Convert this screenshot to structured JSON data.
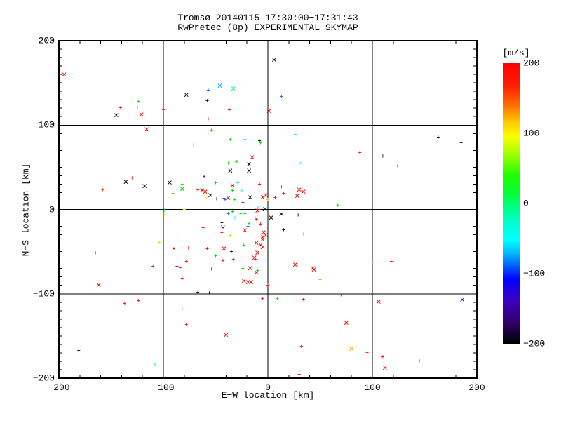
{
  "chart_data": {
    "type": "scatter",
    "title": "Tromsø 20140115 17:30:00−17:31:43",
    "subtitle": "RwPretec (8p) EXPERIMENTAL SKYMAP",
    "xlabel": "E−W location [km]",
    "ylabel": "N−S location [km]",
    "xlim": [
      -200,
      200
    ],
    "ylim": [
      -200,
      200
    ],
    "x_ticks": {
      "major": [
        -200,
        -100,
        0,
        100,
        200
      ],
      "labels": [
        "−200",
        "−100",
        "0",
        "100",
        "200"
      ],
      "minor_step": 20
    },
    "y_ticks": {
      "major": [
        -200,
        -100,
        0,
        100,
        200
      ],
      "labels": [
        "−200",
        "−100",
        "0",
        "100",
        "200"
      ],
      "minor_step": 10
    },
    "grid": true,
    "grid_lines_at": [
      -100,
      0,
      100
    ],
    "colorbar": {
      "title": "[m/s]",
      "range": [
        -200,
        200
      ],
      "tick_values": [
        200,
        100,
        0,
        -100,
        -200
      ],
      "tick_labels": [
        "200",
        "100",
        "0",
        "−100",
        "−200"
      ],
      "legend_position": "right",
      "gradient": [
        {
          "p": 0.0,
          "c": "#ff0000"
        },
        {
          "p": 0.08,
          "c": "#ff1e00"
        },
        {
          "p": 0.15,
          "c": "#ff6e00"
        },
        {
          "p": 0.21,
          "c": "#ffc800"
        },
        {
          "p": 0.26,
          "c": "#ffff00"
        },
        {
          "p": 0.33,
          "c": "#96ff00"
        },
        {
          "p": 0.4,
          "c": "#1eff00"
        },
        {
          "p": 0.47,
          "c": "#00ff3c"
        },
        {
          "p": 0.52,
          "c": "#00ff8c"
        },
        {
          "p": 0.58,
          "c": "#00ffdc"
        },
        {
          "p": 0.63,
          "c": "#00ffff"
        },
        {
          "p": 0.68,
          "c": "#00b4ff"
        },
        {
          "p": 0.73,
          "c": "#0050ff"
        },
        {
          "p": 0.77,
          "c": "#0000ff"
        },
        {
          "p": 0.84,
          "c": "#3c00c8"
        },
        {
          "p": 0.92,
          "c": "#30006e"
        },
        {
          "p": 1.0,
          "c": "#000000"
        }
      ]
    },
    "points": [
      [
        -195,
        159,
        "#ff0000",
        "l"
      ],
      [
        -78,
        135,
        "#000000",
        "l"
      ],
      [
        -124,
        127,
        "#00dc00",
        "s"
      ],
      [
        -125,
        120,
        "#000000",
        "s"
      ],
      [
        -141,
        119,
        "#ff0000",
        "s"
      ],
      [
        -145,
        111,
        "#000000",
        "l"
      ],
      [
        -121,
        112,
        "#ff0000",
        "l"
      ],
      [
        -100,
        117,
        "#ff0000",
        "s"
      ],
      [
        -116,
        94,
        "#ff0000",
        "l"
      ],
      [
        -71,
        75,
        "#00dc00",
        "s"
      ],
      [
        6,
        177,
        "#000000",
        "l"
      ],
      [
        -46,
        146,
        "#00a0ff",
        "l"
      ],
      [
        -33,
        143,
        "#00ff7f",
        "l"
      ],
      [
        -57,
        140,
        "#0064ff",
        "s"
      ],
      [
        -58,
        128,
        "#000000",
        "s"
      ],
      [
        -37,
        117,
        "#ff0000",
        "s"
      ],
      [
        13,
        133,
        "#0064ff",
        "s"
      ],
      [
        1,
        116,
        "#ff0000",
        "l"
      ],
      [
        -57,
        106,
        "#ff0000",
        "s"
      ],
      [
        -54,
        93,
        "#00dc00",
        "s"
      ],
      [
        -36,
        82,
        "#00dc00",
        "s"
      ],
      [
        -22,
        82,
        "#00ffff",
        "s"
      ],
      [
        -8,
        80,
        "#000000",
        "s"
      ],
      [
        -7,
        78,
        "#00dc00",
        "s"
      ],
      [
        26,
        88,
        "#00ffff",
        "s"
      ],
      [
        163,
        84,
        "#000000",
        "s"
      ],
      [
        185,
        78,
        "#000000",
        "s"
      ],
      [
        88,
        66,
        "#ff0000",
        "s"
      ],
      [
        110,
        62,
        "#000000",
        "s"
      ],
      [
        124,
        50,
        "#00dc00",
        "s"
      ],
      [
        100,
        -64,
        "#ff0000",
        "s"
      ],
      [
        118,
        -63,
        "#ff0000",
        "s"
      ],
      [
        -136,
        32,
        "#000000",
        "l"
      ],
      [
        -130,
        36,
        "#ff0000",
        "s"
      ],
      [
        -118,
        27,
        "#000000",
        "l"
      ],
      [
        -158,
        22,
        "#ff4500",
        "s"
      ],
      [
        -94,
        31,
        "#000000",
        "l"
      ],
      [
        -82,
        24,
        "#00dc00",
        "l"
      ],
      [
        -82,
        29,
        "#00dc00",
        "s"
      ],
      [
        -91,
        18,
        "#ff8c00",
        "s"
      ],
      [
        -67,
        22,
        "#ff0000",
        "s"
      ],
      [
        -99,
        -2,
        "#00ff7f",
        "s"
      ],
      [
        -80,
        -1,
        "#ffff00",
        "s"
      ],
      [
        -99,
        -8,
        "#ffff00",
        "s"
      ],
      [
        -87,
        -30,
        "#ff8c00",
        "s"
      ],
      [
        -104,
        -40,
        "#aae800",
        "s"
      ],
      [
        -90,
        -48,
        "#ff0000",
        "s"
      ],
      [
        -76,
        -47,
        "#ff0000",
        "s"
      ],
      [
        -165,
        -53,
        "#ff0000",
        "s"
      ],
      [
        -78,
        -63,
        "#ff0000",
        "s"
      ],
      [
        -15,
        61,
        "#ff0000",
        "l"
      ],
      [
        -38,
        54,
        "#00dc00",
        "s"
      ],
      [
        -30,
        55,
        "#00dc00",
        "s"
      ],
      [
        -18,
        53,
        "#000000",
        "l"
      ],
      [
        -36,
        45,
        "#000000",
        "l"
      ],
      [
        -18,
        45,
        "#000000",
        "l"
      ],
      [
        -61,
        38,
        "#5a00b4",
        "s"
      ],
      [
        31,
        54,
        "#00ffff",
        "s"
      ],
      [
        -50,
        30,
        "#00dc00",
        "s"
      ],
      [
        -34,
        28,
        "#ff0000",
        "l"
      ],
      [
        -29,
        30,
        "#00ffff",
        "s"
      ],
      [
        -8,
        29,
        "#ff0000",
        "s"
      ],
      [
        -63,
        22,
        "#ff0000",
        "l"
      ],
      [
        -60,
        20,
        "#ff0000",
        "l"
      ],
      [
        -55,
        16,
        "#000000",
        "l"
      ],
      [
        -34,
        21,
        "#00dc00",
        "s"
      ],
      [
        -25,
        21,
        "#00ffff",
        "s"
      ],
      [
        -38,
        13,
        "#ff0000",
        "l"
      ],
      [
        -42,
        12,
        "#ff0000",
        "s"
      ],
      [
        -59,
        13,
        "#ffff00",
        "s"
      ],
      [
        -49,
        11,
        "#000000",
        "s"
      ],
      [
        -41,
        10,
        "#0064ff",
        "s"
      ],
      [
        -32,
        10,
        "#00dc00",
        "s"
      ],
      [
        -17,
        14,
        "#000000",
        "l"
      ],
      [
        -5,
        14,
        "#ff0000",
        "l"
      ],
      [
        -2,
        16,
        "#ff0000",
        "l"
      ],
      [
        -24,
        7,
        "#ff0000",
        "s"
      ],
      [
        -19,
        6,
        "#00ffff",
        "s"
      ],
      [
        0,
        10,
        "#ffc800",
        "s"
      ],
      [
        7,
        13,
        "#ff0000",
        "s"
      ],
      [
        13,
        25,
        "#ff0000",
        "s"
      ],
      [
        15,
        18,
        "#ff0000",
        "s"
      ],
      [
        30,
        23,
        "#ff0000",
        "l"
      ],
      [
        34,
        20,
        "#ff0000",
        "l"
      ],
      [
        28,
        15,
        "#ff0000",
        "l"
      ],
      [
        -9,
        1,
        "#00ffff",
        "l"
      ],
      [
        -3,
        0,
        "#000000",
        "l"
      ],
      [
        67,
        4,
        "#00dc00",
        "s"
      ],
      [
        3,
        -10,
        "#000000",
        "l"
      ],
      [
        13,
        -6,
        "#000000",
        "l"
      ],
      [
        29,
        -8,
        "#000000",
        "s"
      ],
      [
        -34,
        -4,
        "#00dc00",
        "s"
      ],
      [
        -38,
        -6,
        "#0064ff",
        "s"
      ],
      [
        -26,
        -6,
        "#00dc00",
        "s"
      ],
      [
        -22,
        -6,
        "#00dc00",
        "s"
      ],
      [
        -32,
        -11,
        "#00ffff",
        "s"
      ],
      [
        -12,
        -11,
        "#00ffff",
        "s"
      ],
      [
        -44,
        -17,
        "#000000",
        "s"
      ],
      [
        -43,
        -22,
        "#5a00b4",
        "l"
      ],
      [
        -62,
        -23,
        "#ff0000",
        "s"
      ],
      [
        -44,
        -29,
        "#ff0000",
        "s"
      ],
      [
        -18,
        -18,
        "#00dc00",
        "s"
      ],
      [
        -19,
        -21,
        "#0064ff",
        "s"
      ],
      [
        -22,
        -25,
        "#ff0000",
        "l"
      ],
      [
        -11,
        -13,
        "#ff0000",
        "s"
      ],
      [
        -7,
        -19,
        "#ff0000",
        "s"
      ],
      [
        -10,
        -2,
        "#ff0000",
        "l"
      ],
      [
        -4,
        -28,
        "#ff0000",
        "l"
      ],
      [
        -2,
        -31,
        "#ff0000",
        "l"
      ],
      [
        -5,
        -34,
        "#ff0000",
        "l"
      ],
      [
        15,
        -25,
        "#000000",
        "s"
      ],
      [
        34,
        -30,
        "#00ffff",
        "s"
      ],
      [
        -36,
        -32,
        "#aae800",
        "s"
      ],
      [
        -42,
        -47,
        "#ff0000",
        "l"
      ],
      [
        -58,
        -48,
        "#ff0000",
        "s"
      ],
      [
        -35,
        -51,
        "#000000",
        "s"
      ],
      [
        -50,
        -56,
        "#00dc00",
        "s"
      ],
      [
        -23,
        -44,
        "#00dc00",
        "s"
      ],
      [
        -15,
        -47,
        "#00ffff",
        "s"
      ],
      [
        -5,
        -36,
        "#ff0000",
        "l"
      ],
      [
        -11,
        -40,
        "#ff0000",
        "l"
      ],
      [
        -7,
        -43,
        "#ff0000",
        "l"
      ],
      [
        -5,
        -45,
        "#ff0000",
        "l"
      ],
      [
        -10,
        -52,
        "#ff0000",
        "l"
      ],
      [
        -13,
        -58,
        "#ff0000",
        "l"
      ],
      [
        -43,
        -62,
        "#ff0000",
        "s"
      ],
      [
        -33,
        -60,
        "#0064ff",
        "s"
      ],
      [
        -12,
        -60,
        "#ff0000",
        "s"
      ],
      [
        26,
        -66,
        "#ff0000",
        "l"
      ],
      [
        43,
        -70,
        "#ff0000",
        "l"
      ],
      [
        -54,
        -72,
        "#0064ff",
        "s"
      ],
      [
        -24,
        -71,
        "#00dc00",
        "s"
      ],
      [
        -17,
        -70,
        "#ff0000",
        "l"
      ],
      [
        -11,
        -75,
        "#ff0000",
        "l"
      ],
      [
        -10,
        -74,
        "#00dc00",
        "s"
      ],
      [
        -23,
        -85,
        "#ff0000",
        "l"
      ],
      [
        -16,
        -87,
        "#ff0000",
        "l"
      ],
      [
        -19,
        -87,
        "#ff0000",
        "l"
      ],
      [
        44,
        -72,
        "#ff0000",
        "l"
      ],
      [
        50,
        -84,
        "#ff8c00",
        "s"
      ],
      [
        0,
        -91,
        "#ff0000",
        "s"
      ],
      [
        3,
        -100,
        "#ff0000",
        "s"
      ],
      [
        -5,
        -107,
        "#ff0000",
        "s"
      ],
      [
        1,
        -111,
        "#ff0000",
        "s"
      ],
      [
        9,
        -107,
        "#00dc00",
        "s"
      ],
      [
        34,
        -108,
        "#ff0000",
        "s"
      ],
      [
        -56,
        -100,
        "#000000",
        "s"
      ],
      [
        -40,
        -149,
        "#ff0000",
        "l"
      ],
      [
        32,
        -163,
        "#ff0000",
        "s"
      ],
      [
        30,
        -197,
        "#ff0000",
        "s"
      ],
      [
        -110,
        -69,
        "#0064ff",
        "s"
      ],
      [
        -87,
        -69,
        "#5a00b4",
        "s"
      ],
      [
        -84,
        -70,
        "#ff0000",
        "s"
      ],
      [
        -82,
        -83,
        "#ff0000",
        "s"
      ],
      [
        -162,
        -90,
        "#ff0000",
        "l"
      ],
      [
        -137,
        -113,
        "#ff0000",
        "s"
      ],
      [
        -124,
        -109,
        "#ff0000",
        "s"
      ],
      [
        -67,
        -99,
        "#000000",
        "s"
      ],
      [
        -82,
        -119,
        "#ff0000",
        "s"
      ],
      [
        -78,
        -138,
        "#ff0000",
        "s"
      ],
      [
        -181,
        -168,
        "#000000",
        "s"
      ],
      [
        -108,
        -185,
        "#00ffff",
        "s"
      ],
      [
        70,
        -103,
        "#ff0000",
        "s"
      ],
      [
        106,
        -110,
        "#ff0000",
        "l"
      ],
      [
        186,
        -108,
        "#4b0082",
        "l"
      ],
      [
        75,
        -135,
        "#ff0000",
        "l"
      ],
      [
        80,
        -166,
        "#ffa500",
        "l"
      ],
      [
        95,
        -171,
        "#ff0000",
        "s"
      ],
      [
        110,
        -176,
        "#ff0000",
        "s"
      ],
      [
        145,
        -181,
        "#ff0000",
        "s"
      ],
      [
        112,
        -188,
        "#ff0000",
        "l"
      ]
    ]
  }
}
